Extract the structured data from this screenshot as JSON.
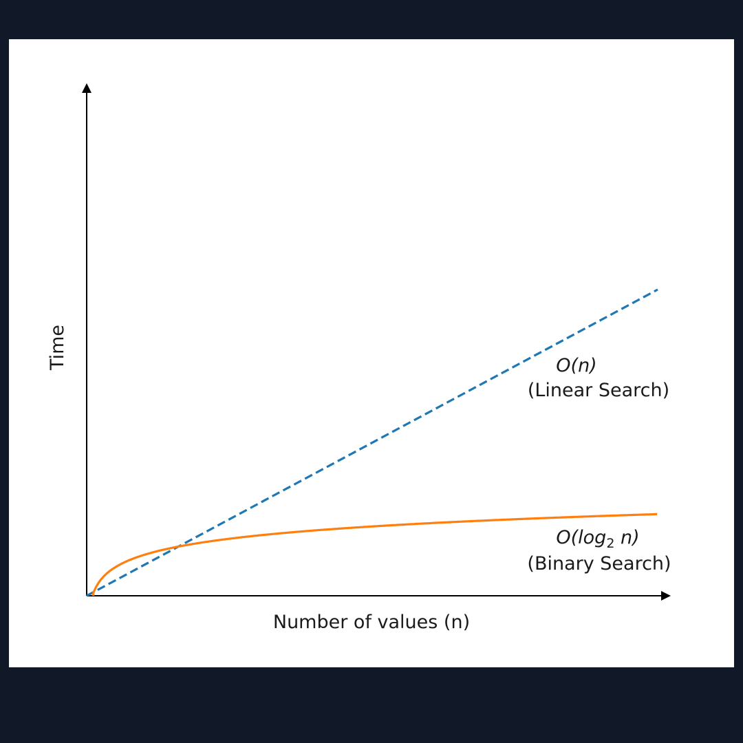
{
  "chart_data": {
    "type": "line",
    "title": "",
    "xlabel": "Number of values (n)",
    "ylabel": "Time",
    "xlim": [
      0,
      100
    ],
    "ylim": [
      0,
      100
    ],
    "grid": false,
    "axis_ticks": false,
    "series": [
      {
        "key": "linear",
        "style": "dashed",
        "color": "#1f77b4",
        "function": "n",
        "x": [
          0,
          100
        ],
        "y": [
          0,
          51.4
        ]
      },
      {
        "key": "binary",
        "style": "solid",
        "color": "#ff7f0e",
        "function": "log2(n)",
        "x": [
          2,
          4,
          8,
          16,
          32,
          64,
          100
        ],
        "y": [
          1.9,
          3.7,
          5.9,
          8.0,
          10.2,
          12.3,
          13.7
        ]
      }
    ],
    "annotations": {
      "linear": {
        "line1": "O(n)",
        "line2": "(Linear Search)"
      },
      "binary": {
        "line1_pre": "O(log",
        "line1_sub": "2",
        "line1_post": " n)",
        "line2": "(Binary Search)"
      }
    }
  }
}
